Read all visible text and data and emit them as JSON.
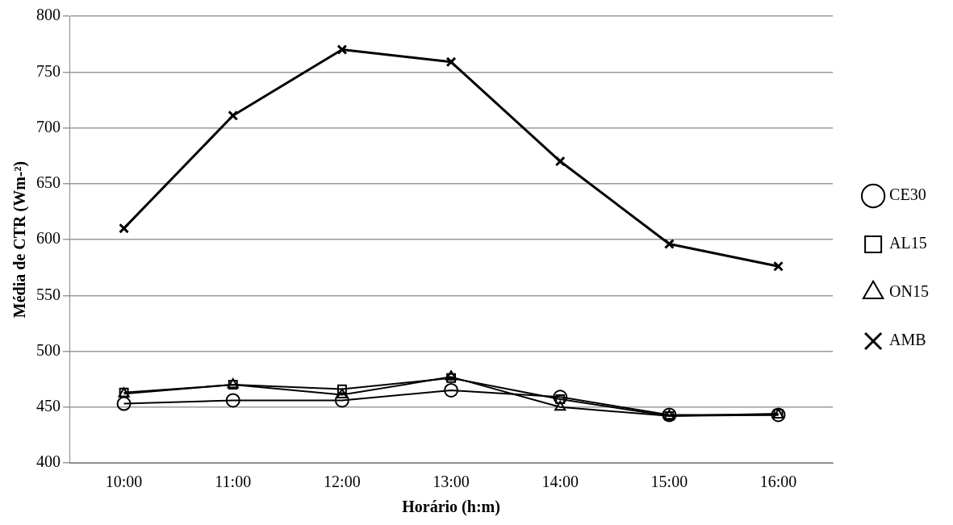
{
  "chart_data": {
    "type": "line",
    "xlabel": "Horário (h:m)",
    "ylabel": "Média de CTR (Wm-²)",
    "categories": [
      "10:00",
      "11:00",
      "12:00",
      "13:00",
      "14:00",
      "15:00",
      "16:00"
    ],
    "series": [
      {
        "name": "CE30",
        "color": "#000000",
        "marker": "circle",
        "values": [
          453,
          456,
          456,
          465,
          459,
          443,
          443
        ]
      },
      {
        "name": "AL15",
        "color": "#000000",
        "marker": "square",
        "values": [
          463,
          470,
          466,
          476,
          457,
          442,
          444
        ]
      },
      {
        "name": "ON15",
        "color": "#000000",
        "marker": "triangle",
        "values": [
          462,
          470,
          461,
          477,
          450,
          442,
          443
        ]
      },
      {
        "name": "AMB",
        "color": "#000000",
        "marker": "cross",
        "values": [
          610,
          711,
          770,
          759,
          670,
          596,
          576
        ]
      }
    ],
    "ylim": [
      400,
      800
    ],
    "yticks": [
      400,
      450,
      500,
      550,
      600,
      650,
      700,
      750,
      800
    ],
    "grid": "y",
    "legend": "right",
    "line_style": "solid"
  }
}
